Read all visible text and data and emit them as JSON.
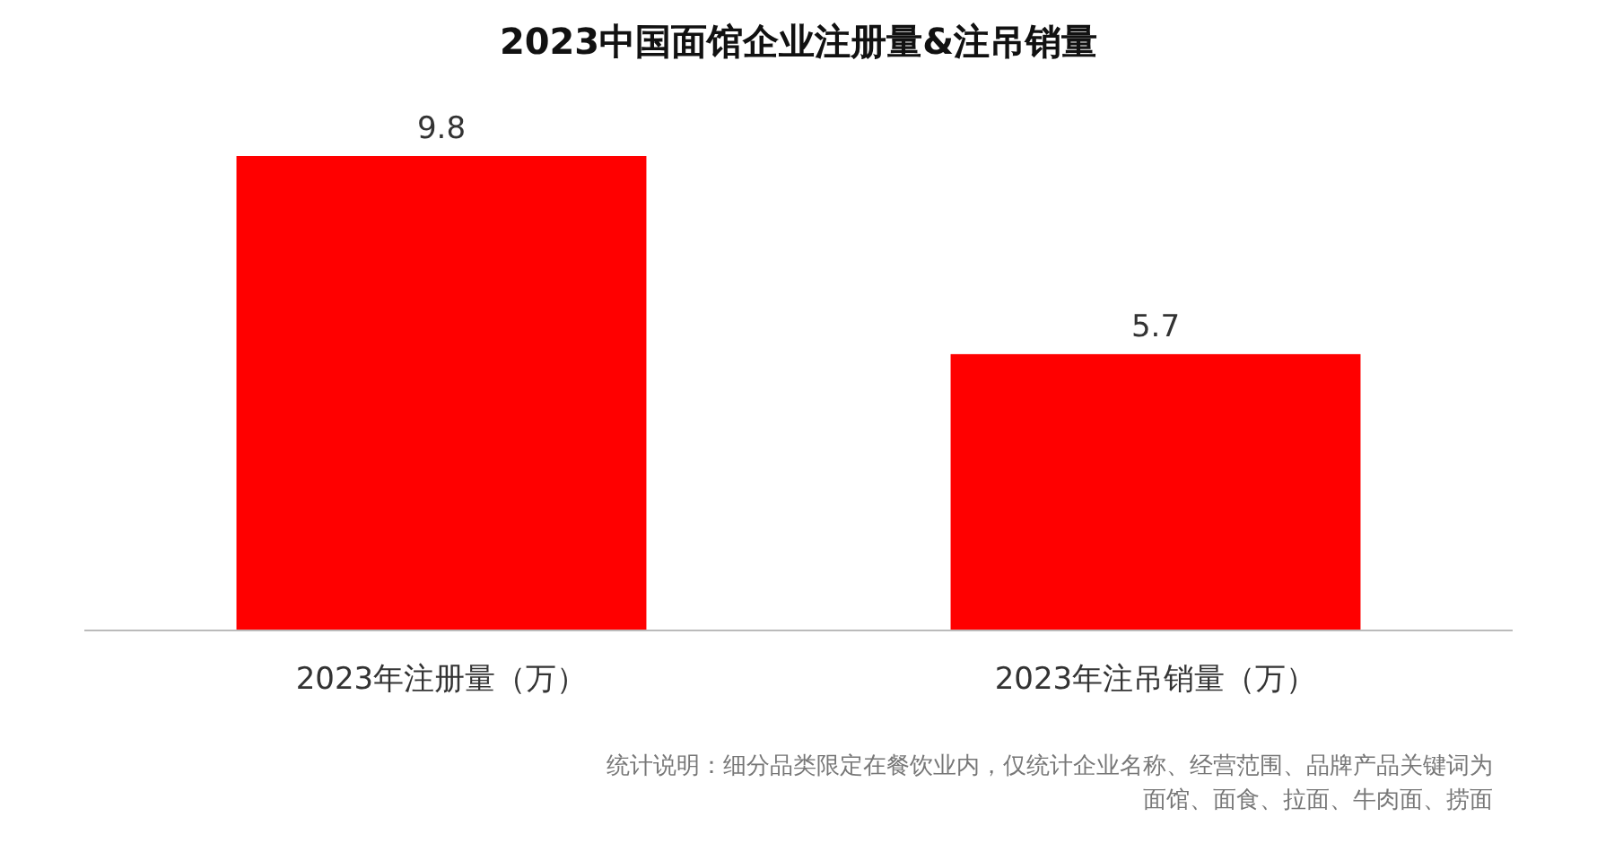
{
  "chart_data": {
    "type": "bar",
    "title": "2023中国面馆企业注册量&注吊销量",
    "categories": [
      "2023年注册量（万）",
      "2023年注吊销量（万）"
    ],
    "values": [
      9.8,
      5.7
    ],
    "color": "#ff0000",
    "data_labels": true,
    "annotations": [
      "统计说明：细分品类限定在餐饮业内，仅统计企业名称、经营范围、品牌产品关键词为",
      "面馆、面食、拉面、牛肉面、捞面"
    ]
  }
}
